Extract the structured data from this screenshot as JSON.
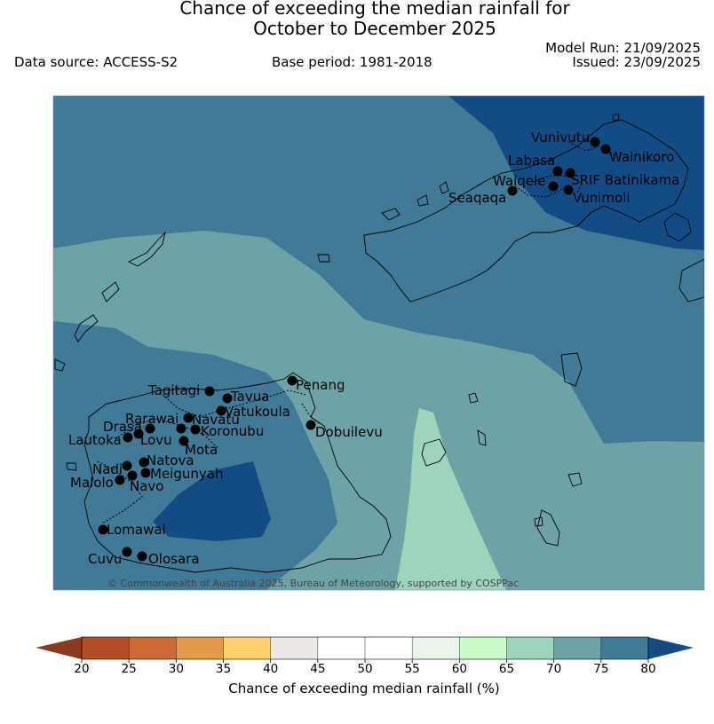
{
  "header": {
    "title_line1": "Chance of exceeding the median rainfall for",
    "title_line2": "October to December 2025",
    "data_source": "Data source: ACCESS-S2",
    "base_period": "Base period: 1981-2018",
    "model_run": "Model Run: 21/09/2025",
    "issued": "Issued: 23/09/2025"
  },
  "map": {
    "copyright": "© Commonwealth of Australia 2025, Bureau of Meteorology, supported by COSPPac",
    "places": [
      {
        "name": "Vunivutu"
      },
      {
        "name": "Wainikoro"
      },
      {
        "name": "Labasa"
      },
      {
        "name": "Waiqele"
      },
      {
        "name": "SRIF Batinikama"
      },
      {
        "name": "Vunimoli"
      },
      {
        "name": "Seaqaqa"
      },
      {
        "name": "Penang"
      },
      {
        "name": "Tagitagi"
      },
      {
        "name": "Tavua"
      },
      {
        "name": "Vatukoula"
      },
      {
        "name": "Rarawai"
      },
      {
        "name": "Navatu"
      },
      {
        "name": "Drasa"
      },
      {
        "name": "Koronubu"
      },
      {
        "name": "Lautoka"
      },
      {
        "name": "Lovu"
      },
      {
        "name": "Mota"
      },
      {
        "name": "Dobuilevu"
      },
      {
        "name": "Natova"
      },
      {
        "name": "Nadi"
      },
      {
        "name": "Meigunyah"
      },
      {
        "name": "Malolo"
      },
      {
        "name": "Navo"
      },
      {
        "name": "Lomawai"
      },
      {
        "name": "Cuvu"
      },
      {
        "name": "Olosara"
      }
    ]
  },
  "colorbar": {
    "label": "Chance of exceeding median rainfall (%)",
    "ticks": [
      "20",
      "25",
      "30",
      "35",
      "40",
      "45",
      "50",
      "55",
      "60",
      "65",
      "70",
      "75",
      "80"
    ],
    "colors": {
      "below_20": "#8b3a1f",
      "20_25": "#b34d26",
      "25_30": "#cd6a35",
      "30_35": "#e49a4c",
      "35_40": "#fdd06a",
      "40_45": "#ece8e5",
      "45_50": "#ffffff",
      "50_55": "#ffffff",
      "55_60": "#eaf4ea",
      "60_65": "#ccfbca",
      "65_70": "#9dd4bb",
      "70_75": "#6da3a6",
      "75_80": "#407a97",
      "above_80": "#134b85"
    }
  }
}
